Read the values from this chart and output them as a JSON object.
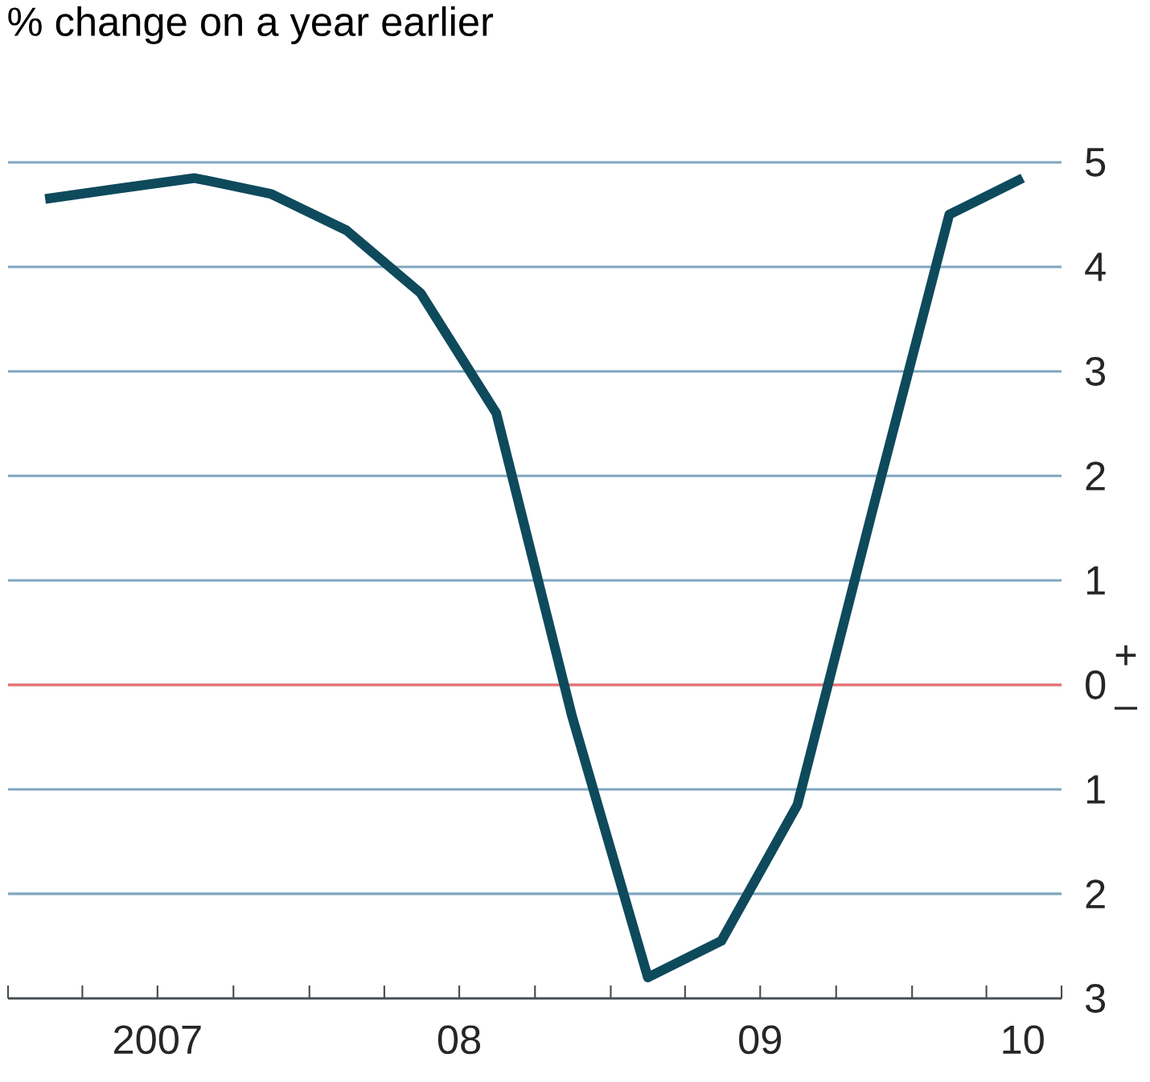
{
  "chart_data": {
    "type": "line",
    "title": "% change on a year earlier",
    "x": [
      "2007-02-15",
      "2007-05-15",
      "2007-08-15",
      "2007-11-15",
      "2008-02-15",
      "2008-05-15",
      "2008-08-15",
      "2008-11-15",
      "2009-02-15",
      "2009-05-15",
      "2009-08-15",
      "2009-11-15",
      "2010-02-15",
      "2010-05-15"
    ],
    "series": [
      {
        "color": "#0e4a5c",
        "values": [
          4.65,
          4.75,
          4.85,
          4.7,
          4.35,
          3.75,
          2.6,
          -0.3,
          -2.8,
          -2.45,
          -1.15,
          1.7,
          4.5,
          4.85
        ]
      }
    ],
    "xlim": [
      "2007-01-01",
      "2010-07-01"
    ],
    "xticks": [
      {
        "value": "2007-01-01",
        "label": null
      },
      {
        "value": "2007-04-01",
        "label": null
      },
      {
        "value": "2007-07-01",
        "label": null
      },
      {
        "value": "2007-10-01",
        "label": null
      },
      {
        "value": "2008-01-01",
        "label": null
      },
      {
        "value": "2008-04-01",
        "label": null
      },
      {
        "value": "2008-07-01",
        "label": null
      },
      {
        "value": "2008-10-01",
        "label": null
      },
      {
        "value": "2009-01-01",
        "label": null
      },
      {
        "value": "2009-04-01",
        "label": null
      },
      {
        "value": "2009-07-01",
        "label": null
      },
      {
        "value": "2009-10-01",
        "label": null
      },
      {
        "value": "2010-01-01",
        "label": null
      },
      {
        "value": "2010-04-01",
        "label": null
      },
      {
        "value": "2010-07-01",
        "label": null
      },
      {
        "value": "2007-07-01",
        "label": "2007"
      },
      {
        "value": "2008-07-01",
        "label": "08"
      },
      {
        "value": "2009-07-01",
        "label": "09"
      },
      {
        "value": "2010-05-15",
        "label": "10"
      }
    ],
    "ylim": [
      -3,
      5
    ],
    "yticks": [
      5,
      4,
      3,
      2,
      1,
      0,
      {
        "value": -1,
        "label": "1"
      },
      {
        "value": -2,
        "label": "2"
      },
      {
        "value": -3,
        "label": "3"
      }
    ],
    "grid": "y",
    "ref_lines": [
      {
        "axis": "y",
        "value": 0,
        "color": "#f26d6d"
      }
    ],
    "annotations": [
      "+",
      "–"
    ],
    "marker": "none",
    "line_style": "solid"
  }
}
